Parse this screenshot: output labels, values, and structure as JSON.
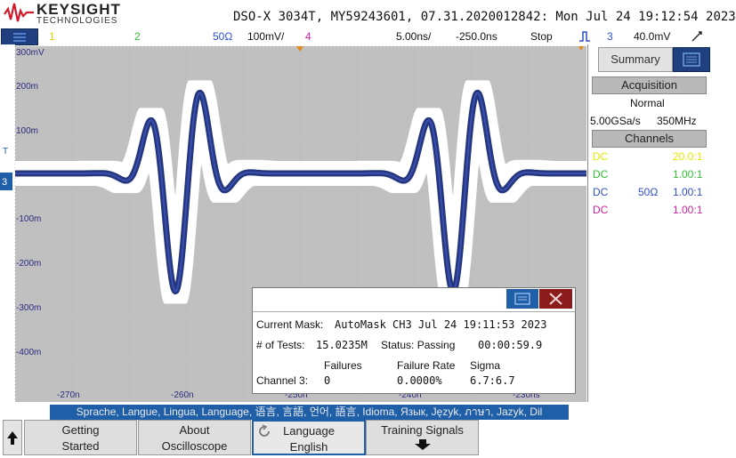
{
  "header": {
    "brand": "KEYSIGHT",
    "brand_sub": "TECHNOLOGIES",
    "title": "DSO-X 3034T, MY59243601, 07.31.2020012842: Mon Jul 24 19:12:54 2023"
  },
  "channel_bar": {
    "ch1": "1",
    "ch2": "2",
    "ch3_impedance": "50Ω",
    "ch3_scale": "100mV/",
    "ch4": "4",
    "timebase": "5.00ns/",
    "delay": "-250.0ns",
    "run_state": "Stop",
    "trigger_source": "3",
    "trigger_level": "40.0mV",
    "colors": {
      "ch1": "#e8e800",
      "ch2": "#30c030",
      "ch3": "#2a3a9a",
      "ch4": "#d020a0"
    }
  },
  "graticule": {
    "y_labels": [
      "300mV",
      "200m",
      "100m",
      "-100m",
      "-200m",
      "-300m",
      "-400m"
    ],
    "x_labels": [
      "-270n",
      "-260n",
      "-250n",
      "-240n",
      "-230ns"
    ]
  },
  "panel": {
    "tab_label": "Summary",
    "acquisition_header": "Acquisition",
    "mode": "Normal",
    "sample_rate": "5.00GSa/s",
    "bandwidth": "350MHz",
    "channels_header": "Channels",
    "channels": [
      {
        "coupling": "DC",
        "impedance": "",
        "probe": "20.0:1",
        "color": "#e8e800"
      },
      {
        "coupling": "DC",
        "impedance": "",
        "probe": "1.00:1",
        "color": "#30c030"
      },
      {
        "coupling": "DC",
        "impedance": "50Ω",
        "probe": "1.00:1",
        "color": "#3050c8"
      },
      {
        "coupling": "DC",
        "impedance": "",
        "probe": "1.00:1",
        "color": "#d020a0"
      }
    ]
  },
  "mask_dialog": {
    "current_mask_label": "Current Mask:",
    "current_mask_value": "AutoMask CH3  Jul 24  19:11:53  2023",
    "tests_label": "# of Tests:",
    "tests_value": "15.0235M",
    "status_label": "Status: Passing",
    "elapsed": "00:00:59.9",
    "col_failures": "Failures",
    "col_failure_rate": "Failure Rate",
    "col_sigma": "Sigma",
    "row_label": "Channel 3:",
    "failures": "0",
    "failure_rate": "0.0000%",
    "sigma": "6.7:6.7"
  },
  "language_strip": "Sprache, Langue, Lingua, Language, 语言, 言語, 언어, 語言, Idioma, Язык, Język, ภาษา, Jazyk, Dil",
  "softkeys": {
    "getting_started": [
      "Getting",
      "Started"
    ],
    "about": [
      "About",
      "Oscilloscope"
    ],
    "language": [
      "Language",
      "English"
    ],
    "training": [
      "Training Signals"
    ]
  }
}
